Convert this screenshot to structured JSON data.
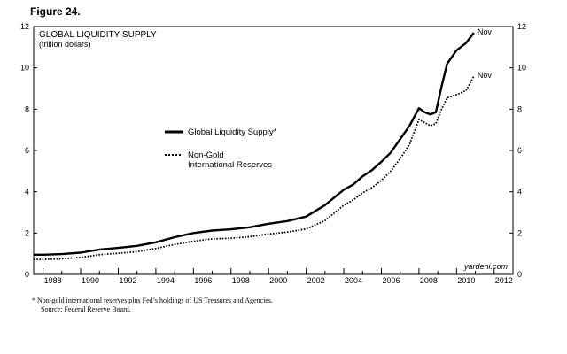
{
  "figure_label": "Figure 24.",
  "footnote": {
    "line1": "*   Non-gold international reserves plus Fed’s holdings of US Treasures and Agencies.",
    "line2": "Source: Federal Reserve Board."
  },
  "chart_data": {
    "type": "line",
    "title": "GLOBAL LIQUIDITY SUPPLY",
    "subtitle": "(trillion dollars)",
    "source_label": "yardeni.com",
    "xlim": [
      1987.5,
      2013
    ],
    "ylim": [
      0,
      12
    ],
    "x_ticks": [
      "1988",
      "1990",
      "1992",
      "1994",
      "1996",
      "1998",
      "2000",
      "2002",
      "2004",
      "2006",
      "2008",
      "2010",
      "2012"
    ],
    "y_ticks": [
      "0",
      "2",
      "4",
      "6",
      "8",
      "10",
      "12"
    ],
    "legend_position": "center-left",
    "series": [
      {
        "name": "Global Liquidity Supply*",
        "style": "solid",
        "color": "#000000",
        "end_label": "Nov",
        "x": [
          1987.5,
          1988,
          1989,
          1990,
          1991,
          1992,
          1993,
          1994,
          1995,
          1996,
          1997,
          1998,
          1999,
          2000,
          2001,
          2002,
          2003,
          2004,
          2004.5,
          2005,
          2005.5,
          2006,
          2006.5,
          2007,
          2007.5,
          2008.0,
          2008.3,
          2008.6,
          2008.9,
          2009.2,
          2009.5,
          2010.0,
          2010.5,
          2010.92
        ],
        "y": [
          0.95,
          0.95,
          0.98,
          1.05,
          1.2,
          1.28,
          1.38,
          1.55,
          1.8,
          2.0,
          2.12,
          2.18,
          2.28,
          2.45,
          2.58,
          2.8,
          3.35,
          4.1,
          4.35,
          4.75,
          5.05,
          5.45,
          5.9,
          6.55,
          7.2,
          8.05,
          7.85,
          7.75,
          7.85,
          9.1,
          10.2,
          10.85,
          11.2,
          11.7
        ]
      },
      {
        "name": "Non-Gold International Reserves",
        "style": "dotted",
        "color": "#000000",
        "end_label": "Nov",
        "x": [
          1987.5,
          1988,
          1989,
          1990,
          1991,
          1992,
          1993,
          1994,
          1995,
          1996,
          1997,
          1998,
          1999,
          2000,
          2001,
          2002,
          2003,
          2004,
          2004.5,
          2005,
          2005.5,
          2006,
          2006.5,
          2007,
          2007.5,
          2008.0,
          2008.3,
          2008.6,
          2008.9,
          2009.2,
          2009.5,
          2010.0,
          2010.5,
          2010.92
        ],
        "y": [
          0.72,
          0.72,
          0.76,
          0.82,
          0.95,
          1.02,
          1.1,
          1.25,
          1.45,
          1.6,
          1.72,
          1.75,
          1.82,
          1.95,
          2.05,
          2.2,
          2.6,
          3.35,
          3.6,
          3.95,
          4.2,
          4.55,
          5.0,
          5.6,
          6.3,
          7.5,
          7.35,
          7.2,
          7.3,
          8.0,
          8.55,
          8.7,
          8.9,
          9.6
        ]
      }
    ]
  }
}
